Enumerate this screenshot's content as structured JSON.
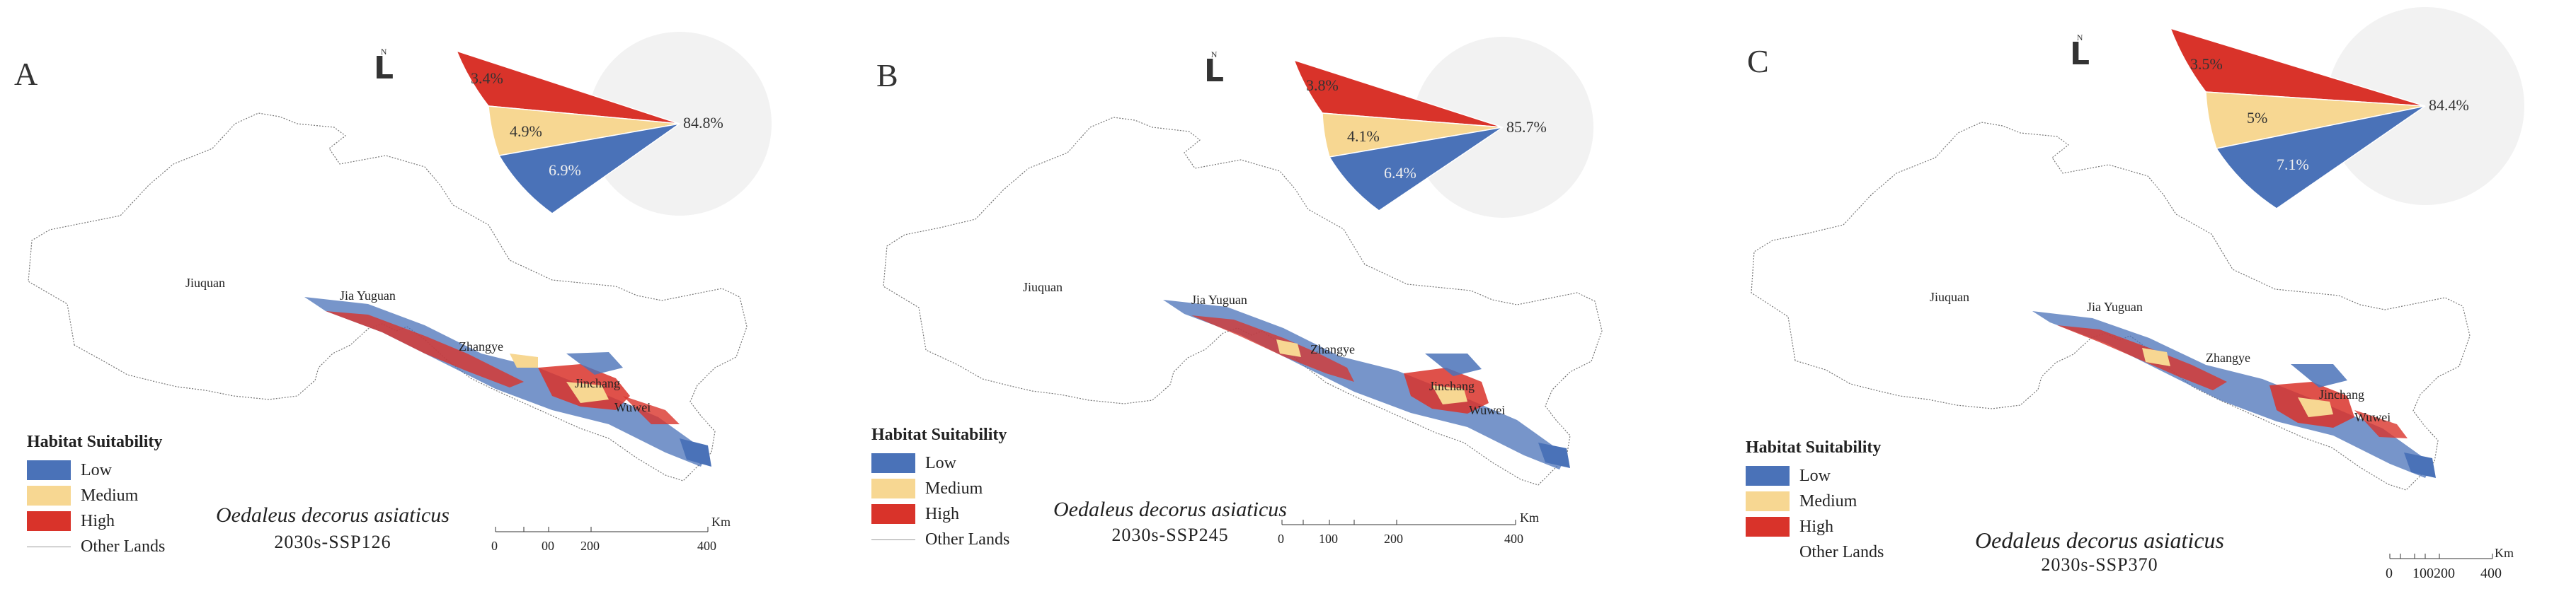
{
  "panels": [
    {
      "id": "A",
      "species": "Oedaleus decorus asiaticus",
      "scenario": "2030s-SSP126",
      "pie": {
        "other": "84.8%",
        "high": "3.4%",
        "medium": "4.9%",
        "low": "6.9%"
      },
      "cities": [
        "Jiuquan",
        "Jia Yuguan",
        "Zhangye",
        "Jinchang",
        "Wuwei"
      ],
      "scale": {
        "labels": [
          "0",
          "00",
          "200",
          "400"
        ],
        "unit": "Km"
      }
    },
    {
      "id": "B",
      "species": "Oedaleus decorus asiaticus",
      "scenario": "2030s-SSP245",
      "pie": {
        "other": "85.7%",
        "high": "3.8%",
        "medium": "4.1%",
        "low": "6.4%"
      },
      "cities": [
        "Jiuquan",
        "Jia Yuguan",
        "Zhangye",
        "Jinchang",
        "Wuwei"
      ],
      "scale": {
        "labels": [
          "0",
          "100",
          "200",
          "400"
        ],
        "unit": "Km"
      }
    },
    {
      "id": "C",
      "species": "Oedaleus decorus asiaticus",
      "scenario": "2030s-SSP370",
      "pie": {
        "other": "84.4%",
        "high": "3.5%",
        "medium": "5%",
        "low": "7.1%"
      },
      "cities": [
        "Jiuquan",
        "Jia Yuguan",
        "Zhangye",
        "Jinchang",
        "Wuwei"
      ],
      "scale": {
        "labels": [
          "0",
          "100",
          "200",
          "400"
        ],
        "unit": "Km"
      }
    }
  ],
  "legend": {
    "title": "Habitat Suitability",
    "items": [
      "Low",
      "Medium",
      "High",
      "Other Lands"
    ]
  },
  "colors": {
    "low": "#4a72b8",
    "medium": "#f7d792",
    "high": "#d9332a",
    "other": "#f2f2f2",
    "boundary": "#777777"
  },
  "north_arrow": "N"
}
